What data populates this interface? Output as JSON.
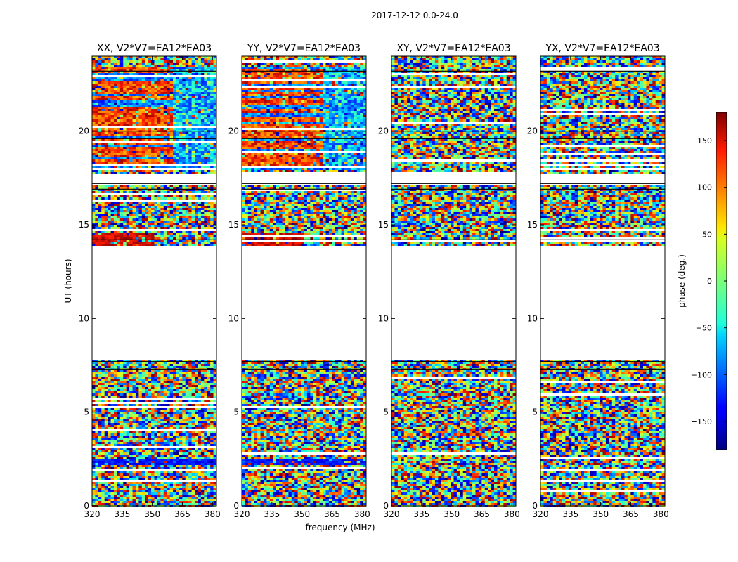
{
  "figure": {
    "suptitle": "2017-12-12 0.0-24.0",
    "ylabel": "UT (hours)",
    "xlabel": "frequency (MHz)"
  },
  "chart_data": {
    "type": "heatmap",
    "panels": [
      {
        "title": "XX, V2*V7=EA12*EA03",
        "pol": "XX"
      },
      {
        "title": "YY, V2*V7=EA12*EA03",
        "pol": "YY"
      },
      {
        "title": "XY, V2*V7=EA12*EA03",
        "pol": "XY"
      },
      {
        "title": "YX, V2*V7=EA12*EA03",
        "pol": "YX"
      }
    ],
    "x": {
      "label": "frequency (MHz)",
      "range": [
        320,
        382
      ],
      "ticks": [
        320,
        335,
        350,
        365,
        380
      ]
    },
    "y": {
      "label": "UT (hours)",
      "range": [
        0,
        24
      ],
      "ticks": [
        0,
        5,
        10,
        15,
        20
      ]
    },
    "data_hour_ranges": [
      [
        0,
        7.8
      ],
      [
        13.9,
        17.2
      ],
      [
        17.8,
        24
      ]
    ],
    "colorbar": {
      "label": "phase (deg.)",
      "range": [
        -180,
        180
      ],
      "ticks": [
        -150,
        -100,
        -50,
        0,
        50,
        100,
        150
      ],
      "colormap": "jet"
    }
  }
}
